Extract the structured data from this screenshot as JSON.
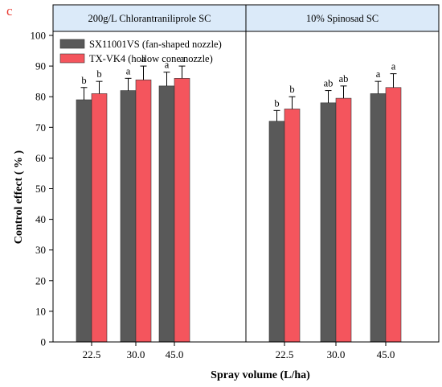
{
  "panel_label": "c",
  "colors": {
    "series_dark": "#595959",
    "series_red": "#f4555d",
    "header_fill": "#dbeaf9",
    "panel_label": "#e8382f"
  },
  "chart_data": {
    "type": "bar",
    "xlabel": "Spray volume (L/ha)",
    "ylabel": "Control effect ( % )",
    "ylim": [
      0,
      100
    ],
    "yticks": [
      0,
      10,
      20,
      30,
      40,
      50,
      60,
      70,
      80,
      90,
      100
    ],
    "categories": [
      "22.5",
      "30.0",
      "45.0"
    ],
    "legend": {
      "placement": "top-left",
      "entries": [
        "SX11001VS (fan-shaped nozzle)",
        "TX-VK4 (hollow cone nozzle)"
      ]
    },
    "facets": [
      {
        "title": "200g/L Chlorantraniliprole SC",
        "series": [
          {
            "name": "SX11001VS (fan-shaped nozzle)",
            "values": [
              79,
              82,
              83.5
            ],
            "errors": [
              4,
              4,
              4.5
            ],
            "labels": [
              "b",
              "a",
              "a"
            ]
          },
          {
            "name": "TX-VK4 (hollow cone nozzle)",
            "values": [
              81,
              85.5,
              86
            ],
            "errors": [
              4,
              4.5,
              4
            ],
            "labels": [
              "b",
              "a",
              "a"
            ]
          }
        ]
      },
      {
        "title": "10% Spinosad SC",
        "series": [
          {
            "name": "SX11001VS (fan-shaped nozzle)",
            "values": [
              72,
              78,
              81
            ],
            "errors": [
              3.5,
              4,
              4
            ],
            "labels": [
              "b",
              "ab",
              "a"
            ]
          },
          {
            "name": "TX-VK4 (hollow cone nozzle)",
            "values": [
              76,
              79.5,
              83
            ],
            "errors": [
              4,
              4,
              4.5
            ],
            "labels": [
              "b",
              "ab",
              "a"
            ]
          }
        ]
      }
    ]
  }
}
